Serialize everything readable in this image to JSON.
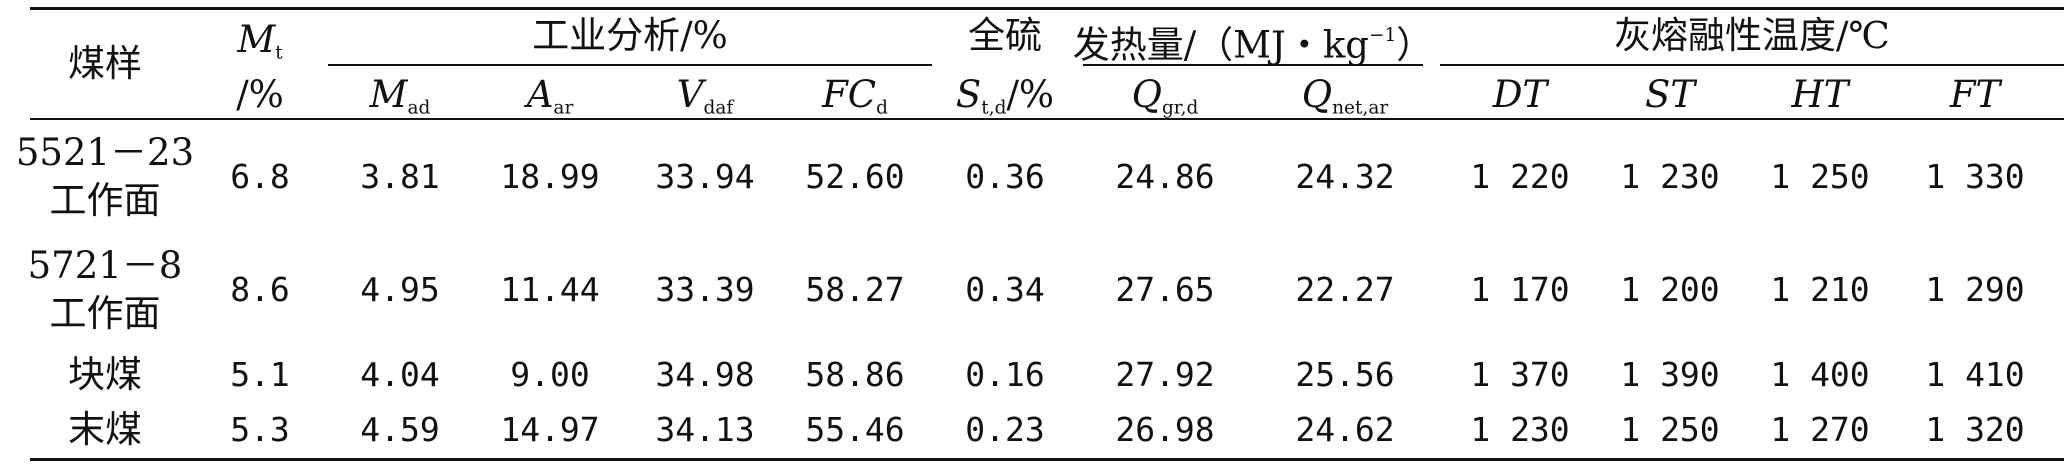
{
  "header": {
    "sample": "煤样",
    "mt_sym": "M",
    "mt_sub": "t",
    "mt_unit": "/%",
    "proximate": "工业分析/%",
    "mad_sym": "M",
    "mad_sub": "ad",
    "aar_sym": "A",
    "aar_sub": "ar",
    "vdaf_sym": "V",
    "vdaf_sub": "daf",
    "fcd_sym": "FC",
    "fcd_sub": "d",
    "sulfur": "全硫",
    "std_sym": "S",
    "std_sub": "t,d",
    "std_unit": "/%",
    "heat_pre": "发热量/（MJ・kg",
    "heat_sup": "−1",
    "heat_post": "）",
    "qgr_sym": "Q",
    "qgr_sub": "gr,d",
    "qnet_sym": "Q",
    "qnet_sub": "net,ar",
    "ash": "灰熔融性温度/℃",
    "dt": "DT",
    "st": "ST",
    "ht": "HT",
    "ft": "FT"
  },
  "rows": [
    {
      "name1": "5521－23",
      "name2": "工作面",
      "v": [
        "6.8",
        "3.81",
        "18.99",
        "33.94",
        "52.60",
        "0.36",
        "24.86",
        "24.32",
        "1 220",
        "1 230",
        "1 250",
        "1 330"
      ]
    },
    {
      "name1": "5721－8",
      "name2": "工作面",
      "v": [
        "8.6",
        "4.95",
        "11.44",
        "33.39",
        "58.27",
        "0.34",
        "27.65",
        "22.27",
        "1 170",
        "1 200",
        "1 210",
        "1 290"
      ]
    },
    {
      "name1": "块煤",
      "name2": "",
      "v": [
        "5.1",
        "4.04",
        "9.00",
        "34.98",
        "58.86",
        "0.16",
        "27.92",
        "25.56",
        "1 370",
        "1 390",
        "1 400",
        "1 410"
      ]
    },
    {
      "name1": "末煤",
      "name2": "",
      "v": [
        "5.3",
        "4.59",
        "14.97",
        "34.13",
        "55.46",
        "0.23",
        "26.98",
        "24.62",
        "1 230",
        "1 250",
        "1 270",
        "1 320"
      ]
    }
  ]
}
